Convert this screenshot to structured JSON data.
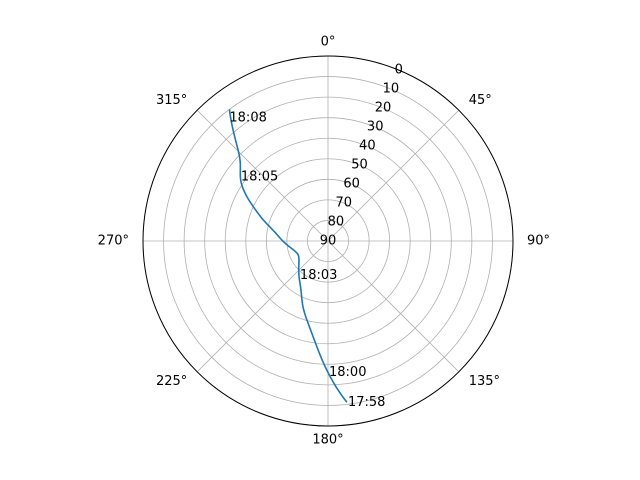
{
  "chart_data": {
    "type": "polar-line",
    "theta_zero": "N",
    "theta_direction": "clockwise",
    "angle_ticks": [
      {
        "deg": 0,
        "label": "0°"
      },
      {
        "deg": 45,
        "label": "45°"
      },
      {
        "deg": 90,
        "label": "90°"
      },
      {
        "deg": 135,
        "label": "135°"
      },
      {
        "deg": 180,
        "label": "180°"
      },
      {
        "deg": 225,
        "label": "225°"
      },
      {
        "deg": 270,
        "label": "270°"
      },
      {
        "deg": 315,
        "label": "315°"
      }
    ],
    "radial_axis": {
      "quantity": "elevation",
      "range": [
        0,
        90
      ],
      "inverted": true,
      "ticks": [
        "0",
        "10",
        "20",
        "30",
        "40",
        "50",
        "60",
        "70",
        "80",
        "90"
      ],
      "tick_angle_deg": 22.5
    },
    "grid": true,
    "series": [
      {
        "color": "#1f77b4",
        "points": [
          {
            "az": 173.3,
            "el": 11
          },
          {
            "az": 187,
            "el": 40
          },
          {
            "az": 200,
            "el": 55
          },
          {
            "az": 215,
            "el": 66
          },
          {
            "az": 245,
            "el": 74
          },
          {
            "az": 275,
            "el": 66
          },
          {
            "az": 290,
            "el": 55
          },
          {
            "az": 303,
            "el": 40
          },
          {
            "az": 314,
            "el": 30
          },
          {
            "az": 323.2,
            "el": 10
          }
        ],
        "annotations": [
          {
            "text": "17:58",
            "az": 173.3,
            "el": 11
          },
          {
            "text": "18:00",
            "az": 180,
            "el": 26
          },
          {
            "text": "18:03",
            "az": 220,
            "el": 68
          },
          {
            "text": "18:05",
            "az": 306,
            "el": 37
          },
          {
            "text": "18:08",
            "az": 321,
            "el": 13
          }
        ]
      }
    ]
  }
}
